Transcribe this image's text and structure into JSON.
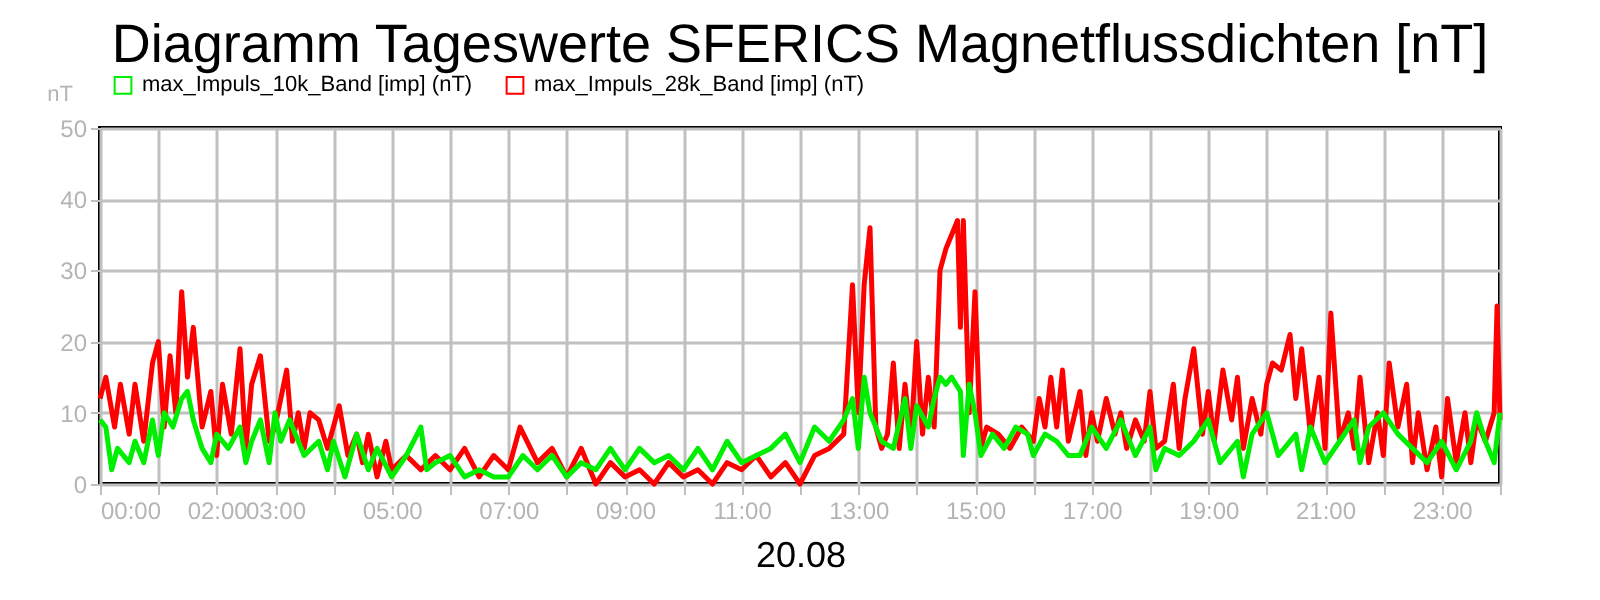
{
  "chart_data": {
    "type": "line",
    "title": "Diagramm Tageswerte SFERICS Magnetflussdichten [nT]",
    "xlabel": "20.08",
    "ylabel": "nT",
    "xlim": [
      0,
      24
    ],
    "ylim": [
      0,
      50
    ],
    "yticks": [
      0,
      10,
      20,
      30,
      40,
      50
    ],
    "xticks": [
      {
        "value": 0,
        "label": "00:00"
      },
      {
        "value": 1,
        "label": null
      },
      {
        "value": 2,
        "label": "02:00"
      },
      {
        "value": 3,
        "label": "03:00"
      },
      {
        "value": 4,
        "label": null
      },
      {
        "value": 5,
        "label": "05:00"
      },
      {
        "value": 6,
        "label": null
      },
      {
        "value": 7,
        "label": "07:00"
      },
      {
        "value": 8,
        "label": null
      },
      {
        "value": 9,
        "label": "09:00"
      },
      {
        "value": 10,
        "label": null
      },
      {
        "value": 11,
        "label": "11:00"
      },
      {
        "value": 12,
        "label": null
      },
      {
        "value": 13,
        "label": "13:00"
      },
      {
        "value": 14,
        "label": null
      },
      {
        "value": 15,
        "label": "15:00"
      },
      {
        "value": 16,
        "label": null
      },
      {
        "value": 17,
        "label": "17:00"
      },
      {
        "value": 18,
        "label": null
      },
      {
        "value": 19,
        "label": "19:00"
      },
      {
        "value": 20,
        "label": null
      },
      {
        "value": 21,
        "label": "21:00"
      },
      {
        "value": 22,
        "label": null
      },
      {
        "value": 23,
        "label": "23:00"
      },
      {
        "value": 24,
        "label": null
      }
    ],
    "grid": true,
    "legend": "top left",
    "marker": "none",
    "line_style": "solid",
    "series": [
      {
        "name": "max_Impuls_28k_Band [imp] (nT)",
        "color": "#ff0000",
        "x": [
          0,
          0.1,
          0.25,
          0.35,
          0.5,
          0.6,
          0.75,
          0.9,
          1.0,
          1.1,
          1.2,
          1.3,
          1.4,
          1.5,
          1.6,
          1.75,
          1.9,
          2.0,
          2.1,
          2.25,
          2.4,
          2.5,
          2.6,
          2.75,
          2.9,
          3.0,
          3.2,
          3.3,
          3.4,
          3.5,
          3.6,
          3.75,
          3.9,
          4.0,
          4.1,
          4.25,
          4.4,
          4.5,
          4.6,
          4.75,
          4.9,
          5.0,
          5.25,
          5.5,
          5.75,
          6.0,
          6.25,
          6.5,
          6.75,
          7.0,
          7.2,
          7.5,
          7.75,
          8.0,
          8.25,
          8.5,
          8.75,
          9.0,
          9.25,
          9.5,
          9.75,
          10.0,
          10.25,
          10.5,
          10.75,
          11.0,
          11.25,
          11.5,
          11.75,
          12.0,
          12.25,
          12.5,
          12.75,
          12.9,
          13.0,
          13.1,
          13.2,
          13.3,
          13.4,
          13.5,
          13.6,
          13.7,
          13.8,
          13.9,
          14.0,
          14.1,
          14.2,
          14.3,
          14.4,
          14.5,
          14.6,
          14.7,
          14.75,
          14.8,
          14.9,
          15.0,
          15.1,
          15.2,
          15.4,
          15.6,
          15.8,
          16.0,
          16.1,
          16.2,
          16.3,
          16.4,
          16.5,
          16.6,
          16.8,
          16.9,
          17.0,
          17.1,
          17.25,
          17.4,
          17.5,
          17.6,
          17.75,
          17.9,
          18.0,
          18.1,
          18.25,
          18.4,
          18.5,
          18.6,
          18.75,
          18.9,
          19.0,
          19.1,
          19.25,
          19.4,
          19.5,
          19.6,
          19.75,
          19.9,
          20.0,
          20.1,
          20.25,
          20.4,
          20.5,
          20.6,
          20.75,
          20.9,
          21.0,
          21.1,
          21.25,
          21.4,
          21.5,
          21.6,
          21.75,
          21.9,
          22.0,
          22.1,
          22.25,
          22.4,
          22.5,
          22.6,
          22.75,
          22.9,
          23.0,
          23.1,
          23.25,
          23.4,
          23.5,
          23.6,
          23.75,
          23.9,
          23.95,
          24
        ],
        "values": [
          12,
          15,
          8,
          14,
          7,
          14,
          6,
          17,
          20,
          8,
          18,
          10,
          27,
          15,
          22,
          8,
          13,
          4,
          14,
          7,
          19,
          5,
          14,
          18,
          6,
          8,
          16,
          6,
          10,
          5,
          10,
          9,
          5,
          8,
          11,
          4,
          7,
          3,
          7,
          1,
          6,
          2,
          4,
          2,
          4,
          2,
          5,
          1,
          4,
          2,
          8,
          3,
          5,
          1,
          5,
          0,
          3,
          1,
          2,
          0,
          3,
          1,
          2,
          0,
          3,
          2,
          4,
          1,
          3,
          0,
          4,
          5,
          7,
          28,
          10,
          28,
          36,
          8,
          5,
          7,
          17,
          5,
          14,
          6,
          20,
          7,
          15,
          8,
          30,
          33,
          35,
          37,
          22,
          37,
          10,
          27,
          5,
          8,
          7,
          5,
          8,
          6,
          12,
          8,
          15,
          8,
          16,
          6,
          13,
          4,
          10,
          6,
          12,
          7,
          10,
          5,
          9,
          6,
          13,
          5,
          6,
          14,
          5,
          12,
          19,
          7,
          13,
          6,
          16,
          9,
          15,
          5,
          12,
          7,
          14,
          17,
          16,
          21,
          12,
          19,
          7,
          15,
          5,
          24,
          6,
          10,
          5,
          15,
          3,
          10,
          4,
          17,
          8,
          14,
          3,
          10,
          2,
          8,
          1,
          12,
          3,
          10,
          3,
          9,
          6,
          10,
          25,
          9
        ]
      },
      {
        "name": "max_Impuls_10k_Band [imp] (nT)",
        "color": "#00ee00",
        "x": [
          0,
          0.1,
          0.2,
          0.3,
          0.5,
          0.6,
          0.75,
          0.9,
          1.0,
          1.1,
          1.25,
          1.4,
          1.5,
          1.6,
          1.75,
          1.9,
          2.0,
          2.2,
          2.4,
          2.5,
          2.6,
          2.75,
          2.9,
          3.0,
          3.1,
          3.25,
          3.4,
          3.5,
          3.75,
          3.9,
          4.0,
          4.2,
          4.4,
          4.6,
          4.75,
          5.0,
          5.25,
          5.5,
          5.6,
          5.75,
          6.0,
          6.25,
          6.5,
          6.75,
          7.0,
          7.25,
          7.5,
          7.75,
          8.0,
          8.25,
          8.5,
          8.75,
          9.0,
          9.25,
          9.5,
          9.75,
          10.0,
          10.25,
          10.5,
          10.75,
          11.0,
          11.25,
          11.5,
          11.75,
          12.0,
          12.25,
          12.5,
          12.75,
          12.9,
          13.0,
          13.1,
          13.2,
          13.3,
          13.4,
          13.6,
          13.8,
          13.9,
          14.0,
          14.2,
          14.3,
          14.4,
          14.5,
          14.6,
          14.75,
          14.8,
          14.9,
          15.0,
          15.1,
          15.3,
          15.5,
          15.7,
          15.9,
          16.0,
          16.2,
          16.4,
          16.6,
          16.8,
          17.0,
          17.25,
          17.5,
          17.75,
          18.0,
          18.1,
          18.25,
          18.5,
          18.75,
          19.0,
          19.2,
          19.5,
          19.6,
          19.75,
          20.0,
          20.2,
          20.5,
          20.6,
          20.75,
          21.0,
          21.25,
          21.5,
          21.6,
          21.75,
          22.0,
          22.25,
          22.5,
          22.75,
          23.0,
          23.25,
          23.5,
          23.6,
          23.75,
          23.9,
          24
        ],
        "values": [
          9,
          8,
          2,
          5,
          3,
          6,
          3,
          9,
          4,
          10,
          8,
          12,
          13,
          9,
          5,
          3,
          7,
          5,
          8,
          3,
          6,
          9,
          3,
          10,
          6,
          9,
          6,
          4,
          6,
          2,
          6,
          1,
          7,
          2,
          5,
          1,
          4,
          8,
          2,
          3,
          4,
          1,
          2,
          1,
          1,
          4,
          2,
          4,
          1,
          3,
          2,
          5,
          2,
          5,
          3,
          4,
          2,
          5,
          2,
          6,
          3,
          4,
          5,
          7,
          3,
          8,
          6,
          9,
          12,
          5,
          15,
          10,
          8,
          6,
          5,
          12,
          5,
          11,
          8,
          12,
          15,
          14,
          15,
          13,
          4,
          14,
          10,
          4,
          7,
          5,
          8,
          7,
          4,
          7,
          6,
          4,
          4,
          8,
          5,
          9,
          4,
          8,
          2,
          5,
          4,
          6,
          9,
          3,
          6,
          1,
          7,
          10,
          4,
          7,
          2,
          8,
          3,
          6,
          9,
          3,
          8,
          10,
          7,
          5,
          3,
          6,
          2,
          6,
          10,
          6,
          3,
          10
        ]
      }
    ]
  }
}
